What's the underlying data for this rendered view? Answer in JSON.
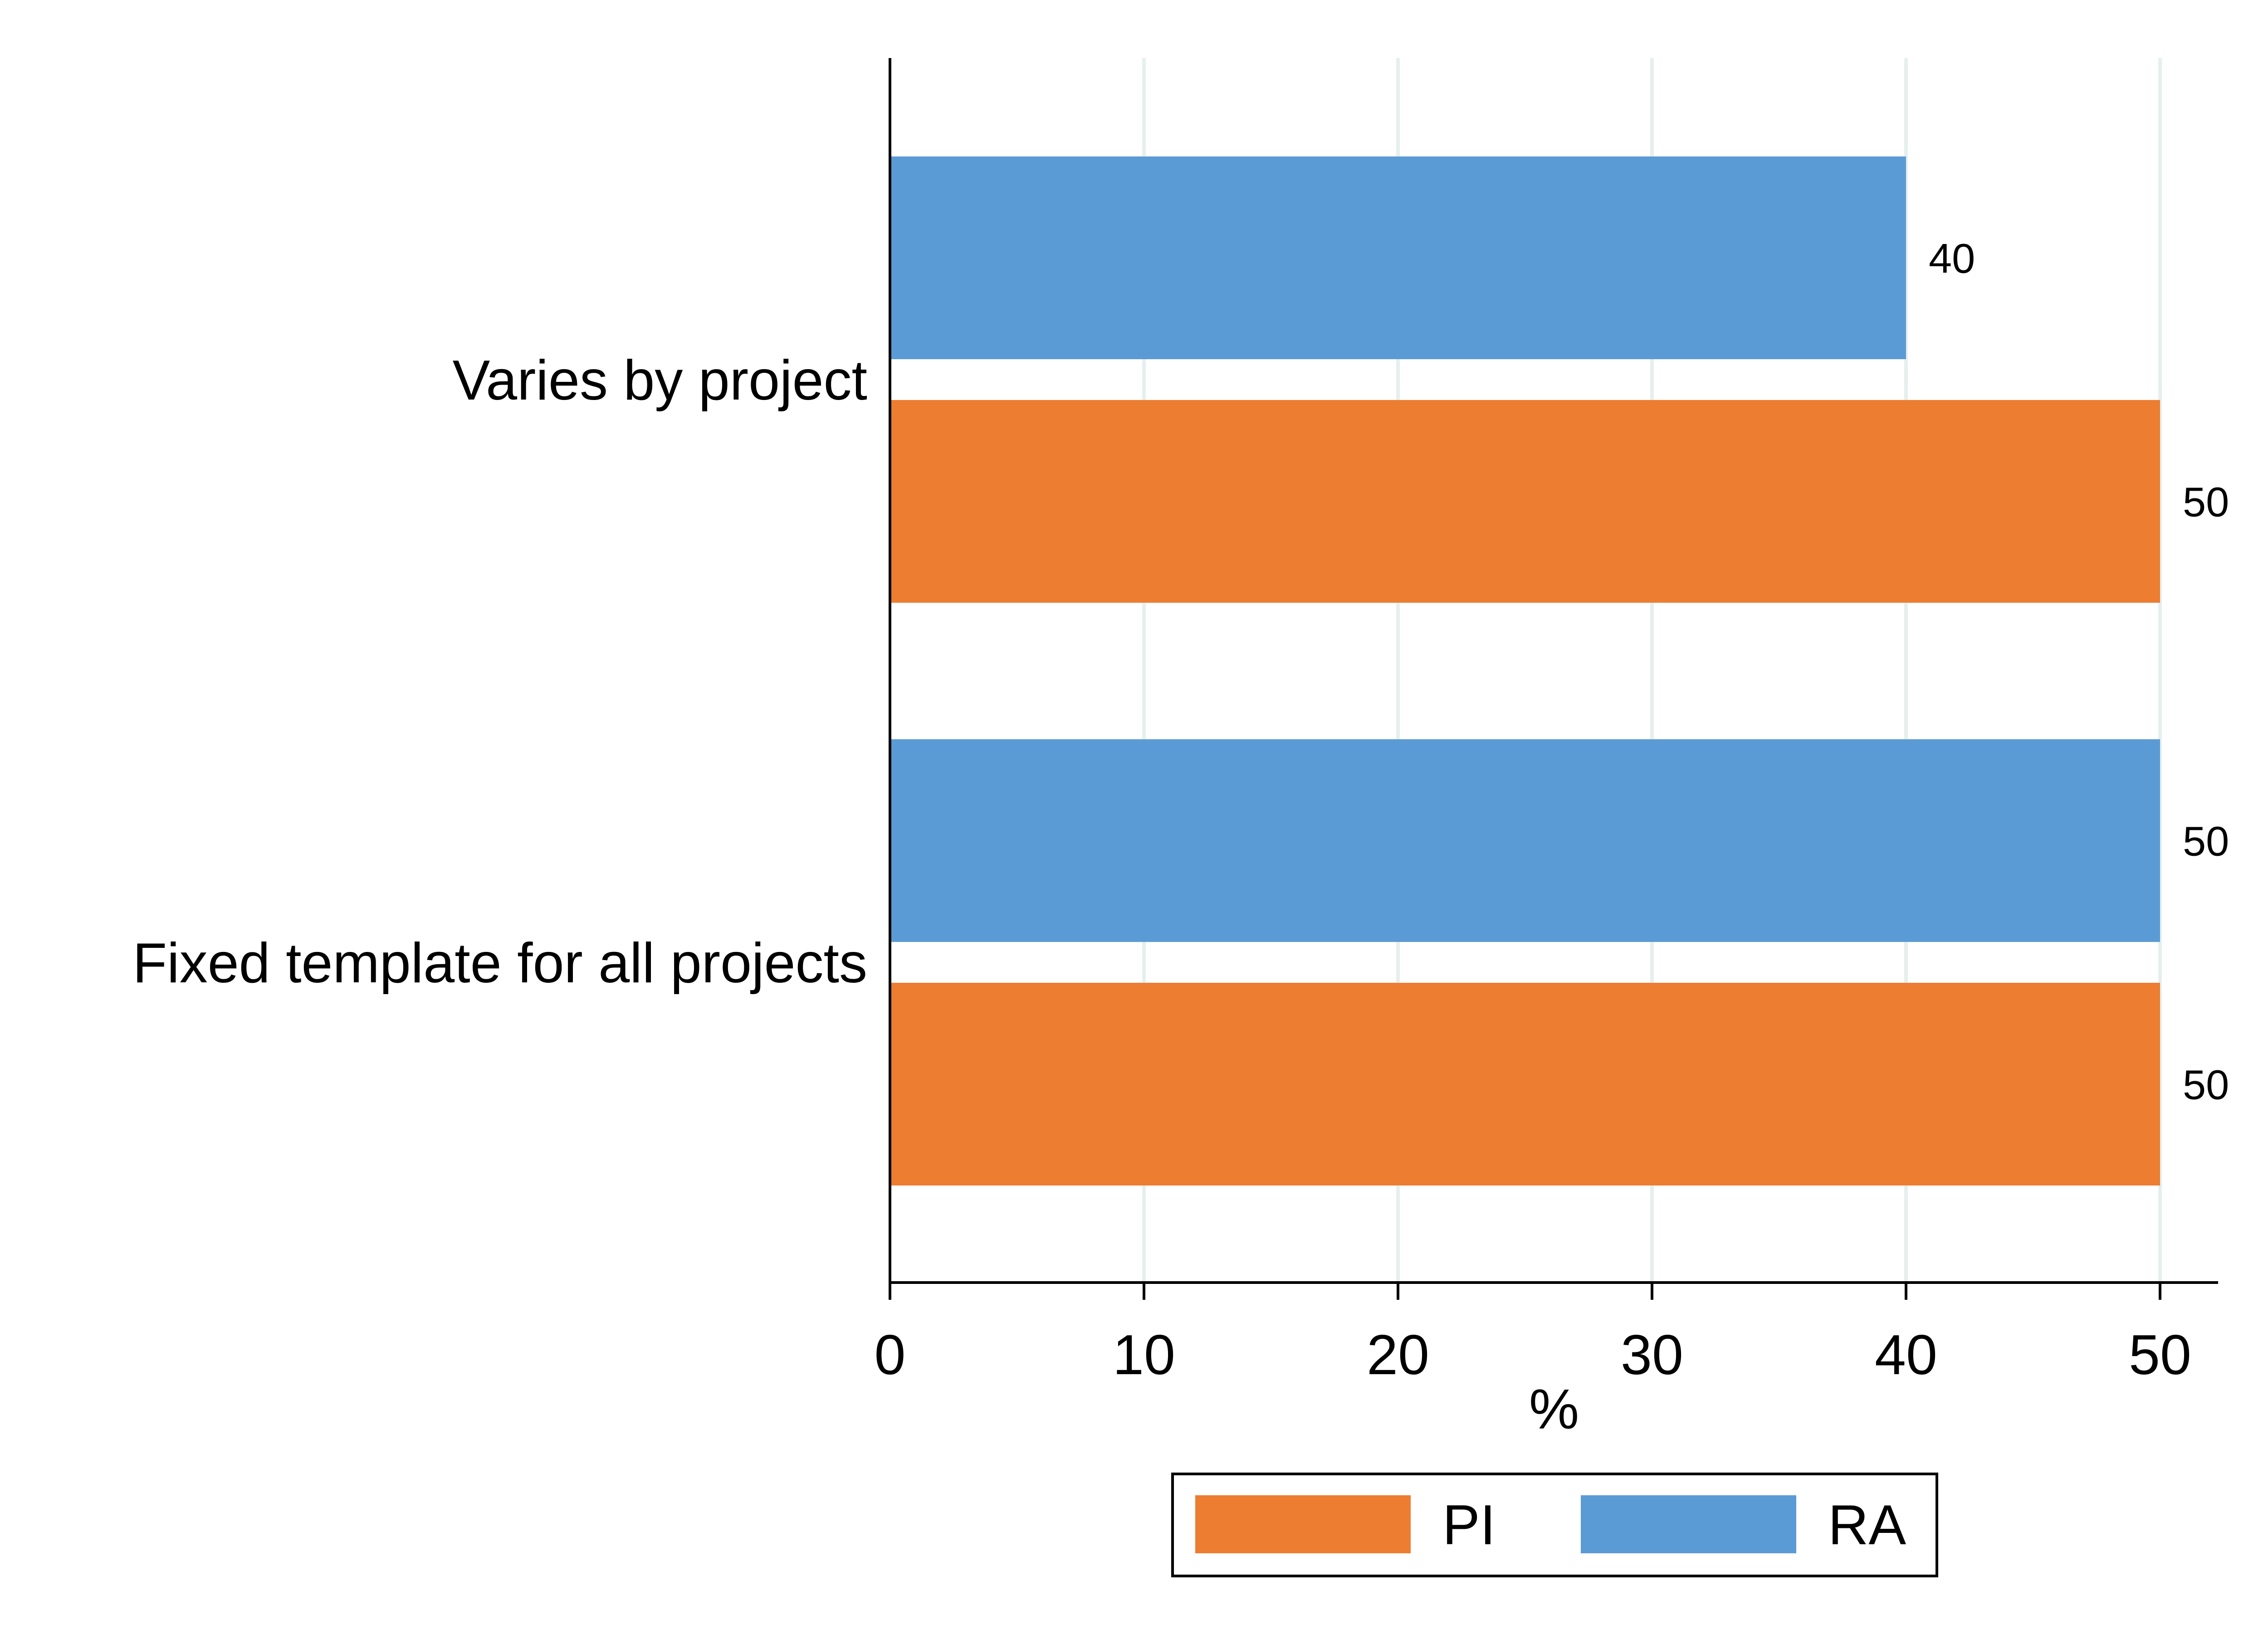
{
  "chart_data": {
    "type": "bar",
    "orientation": "horizontal",
    "categories": [
      "Varies by project",
      "Fixed template for all projects"
    ],
    "series": [
      {
        "name": "RA",
        "color": "#5b9bd5",
        "values": [
          40,
          50
        ]
      },
      {
        "name": "PI",
        "color": "#ed7d31",
        "values": [
          50,
          50
        ]
      }
    ],
    "title": "",
    "xlabel": "%",
    "ylabel": "",
    "xlim": [
      0,
      50
    ],
    "xticks": [
      0,
      10,
      20,
      30,
      40,
      50
    ],
    "grid": "vertical",
    "grid_color": "#e6efee",
    "legend": {
      "placement": "bottom-center",
      "entries": [
        {
          "name": "PI",
          "color": "#ed7d31"
        },
        {
          "name": "RA",
          "color": "#5b9bd5"
        }
      ]
    },
    "data_labels": true
  }
}
